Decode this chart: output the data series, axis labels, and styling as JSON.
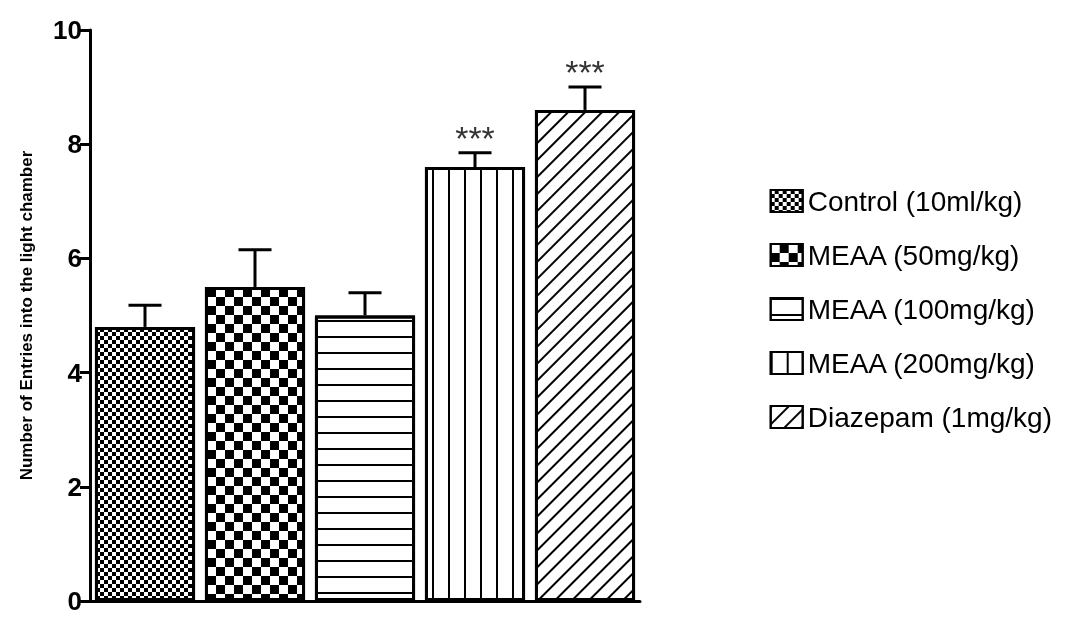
{
  "chart_data": {
    "type": "bar",
    "ylabel": "Number of Entries into the light chamber",
    "categories": [
      null,
      null,
      null,
      null,
      null
    ],
    "series": [
      {
        "name": "Control (10ml/kg)",
        "color": "#ffffff",
        "values": [
          4.8,
          null,
          null,
          null,
          null
        ],
        "errors": [
          [
            4.8,
            5.18
          ],
          null,
          null,
          null,
          null
        ]
      },
      {
        "name": "MEAA (50mg/kg)",
        "color": "#ffffff",
        "values": [
          null,
          5.5,
          null,
          null,
          null
        ],
        "errors": [
          null,
          [
            5.5,
            6.15
          ],
          null,
          null,
          null
        ]
      },
      {
        "name": "MEAA (100mg/kg)",
        "color": "#ffffff",
        "values": [
          null,
          null,
          5.0,
          null,
          null
        ],
        "errors": [
          null,
          null,
          [
            5.0,
            5.4
          ],
          null,
          null
        ]
      },
      {
        "name": "MEAA (200mg/kg)",
        "color": "#ffffff",
        "values": [
          null,
          null,
          null,
          7.6,
          null
        ],
        "errors": [
          null,
          null,
          null,
          [
            7.6,
            7.85
          ],
          null
        ],
        "value_labels": [
          null,
          null,
          null,
          "***",
          null
        ]
      },
      {
        "name": "Diazepam (1mg/kg)",
        "color": "#ffffff",
        "values": [
          null,
          null,
          null,
          null,
          8.6
        ],
        "errors": [
          null,
          null,
          null,
          null,
          [
            8.6,
            9.0
          ]
        ],
        "value_labels": [
          null,
          null,
          null,
          null,
          "***"
        ]
      }
    ],
    "ylim": [
      0,
      10
    ],
    "yticks": [
      0,
      2,
      4,
      6,
      8,
      10
    ],
    "grid": false,
    "legend": "right"
  }
}
